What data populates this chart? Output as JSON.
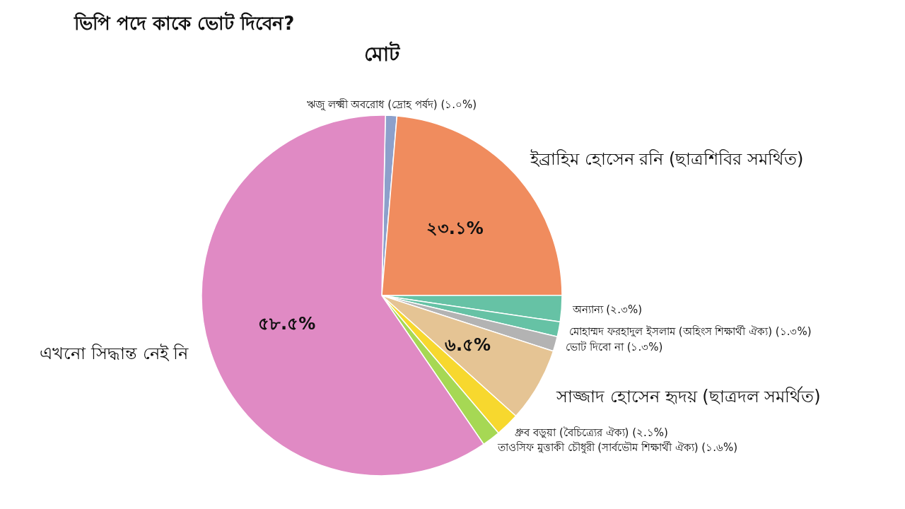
{
  "chart_data": {
    "type": "pie",
    "title": "ভিপি পদে কাকে ভোট দিবেন?",
    "subtitle": "মোট",
    "categories": [
      "ঋজু লক্ষ্মী অবরোধ (দ্রোহ পর্ষদ)",
      "ইব্রাহিম হোসেন রনি (ছাত্রশিবির সমর্থিত)",
      "অন্যান্য",
      "মোহাম্মদ ফরহাদুল ইসলাম (অহিংস শিক্ষার্থী ঐক্য)",
      "ভোট দিবো না",
      "সাজ্জাদ হোসেন হৃদয় (ছাত্রদল সমর্থিত)",
      "ধ্রুব বড়ুয়া (বৈচিত্র্যের ঐক্য)",
      "তাওসিফ মুত্তাকী চৌধুরী (সার্বভৌম শিক্ষার্থী ঐক্য)",
      "এখনো সিদ্ধান্ত নেই নি"
    ],
    "values": [
      1.0,
      23.1,
      2.3,
      1.3,
      1.3,
      6.5,
      2.1,
      1.6,
      58.5
    ],
    "colors": [
      "#8da0cb",
      "#f08c5e",
      "#66c2a5",
      "#66c2a5",
      "#b3b3b3",
      "#e5c494",
      "#f7d82e",
      "#a6d854",
      "#e08ac4"
    ],
    "value_labels": [
      "(১.০%)",
      "২৩.১%",
      "(২.৩%)",
      "(১.৩%)",
      "(১.৩%)",
      "৬.৫%",
      "(২.১%)",
      "(১.৬%)",
      "৫৮.৫%"
    ]
  }
}
